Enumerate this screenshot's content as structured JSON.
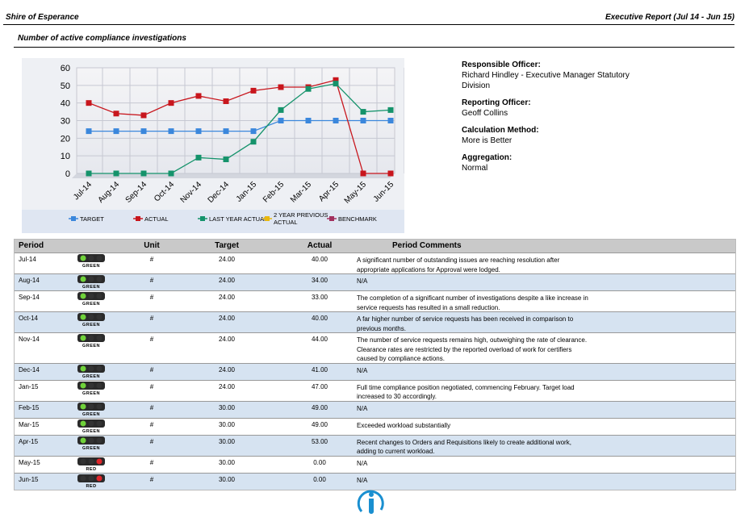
{
  "header": {
    "organisation": "Shire of Esperance",
    "report": "Executive Report (Jul 14 - Jun 15)",
    "subtitle": "Number of active compliance investigations"
  },
  "chart_data": {
    "type": "line",
    "categories": [
      "Jul-14",
      "Aug-14",
      "Sep-14",
      "Oct-14",
      "Nov-14",
      "Dec-14",
      "Jan-15",
      "Feb-15",
      "Mar-15",
      "Apr-15",
      "May-15",
      "Jun-15"
    ],
    "series": [
      {
        "name": "TARGET",
        "color": "#3b87dc",
        "values": [
          24,
          24,
          24,
          24,
          24,
          24,
          24,
          30,
          30,
          30,
          30,
          30
        ]
      },
      {
        "name": "ACTUAL",
        "color": "#c8161d",
        "values": [
          40,
          34,
          33,
          40,
          44,
          41,
          47,
          49,
          49,
          53,
          0,
          0
        ]
      },
      {
        "name": "LAST YEAR ACTUAL",
        "color": "#15936b",
        "values": [
          0,
          0,
          0,
          0,
          9,
          8,
          18,
          36,
          48,
          51,
          35,
          36
        ]
      },
      {
        "name": "2 YEAR PREVIOUS ACTUAL",
        "color": "#e9b80f",
        "values": [
          null,
          null,
          null,
          null,
          null,
          null,
          null,
          null,
          null,
          null,
          null,
          null
        ]
      },
      {
        "name": "BENCHMARK",
        "color": "#a2305e",
        "values": [
          null,
          null,
          null,
          null,
          null,
          null,
          null,
          null,
          null,
          null,
          null,
          null
        ]
      }
    ],
    "ylim": [
      0,
      60
    ],
    "yticks": [
      0,
      10,
      20,
      30,
      40,
      50,
      60
    ],
    "grid": true
  },
  "info": [
    {
      "label": "Responsible Officer:",
      "value": "Richard Hindley - Executive Manager Statutory Division"
    },
    {
      "label": "Reporting Officer:",
      "value": "Geoff Collins"
    },
    {
      "label": "Calculation Method:",
      "value": "More is Better"
    },
    {
      "label": "Aggregation:",
      "value": "Normal"
    }
  ],
  "table": {
    "columns": [
      "Period",
      "Unit",
      "Target",
      "Actual",
      "Period Comments"
    ],
    "rows": [
      {
        "period": "Jul-14",
        "status": {
          "label": "GREEN",
          "lamps": [
            "#6fd23a",
            "#333",
            "#333"
          ]
        },
        "unit": "#",
        "target": "24.00",
        "actual": "40.00",
        "comment": "A significant number of outstanding issues are reaching resolution after appropriate applications for Approval were lodged."
      },
      {
        "period": "Aug-14",
        "status": {
          "label": "GREEN",
          "lamps": [
            "#6fd23a",
            "#333",
            "#333"
          ]
        },
        "unit": "#",
        "target": "24.00",
        "actual": "34.00",
        "comment": "N/A"
      },
      {
        "period": "Sep-14",
        "status": {
          "label": "GREEN",
          "lamps": [
            "#6fd23a",
            "#333",
            "#333"
          ]
        },
        "unit": "#",
        "target": "24.00",
        "actual": "33.00",
        "comment": "The completion of a significant number of investigations despite a like increase in service requests has resulted in a small reduction."
      },
      {
        "period": "Oct-14",
        "status": {
          "label": "GREEN",
          "lamps": [
            "#6fd23a",
            "#333",
            "#333"
          ]
        },
        "unit": "#",
        "target": "24.00",
        "actual": "40.00",
        "comment": "A far higher number of service requests has been received in comparison to previous months."
      },
      {
        "period": "Nov-14",
        "status": {
          "label": "GREEN",
          "lamps": [
            "#6fd23a",
            "#333",
            "#333"
          ]
        },
        "unit": "#",
        "target": "24.00",
        "actual": "44.00",
        "comment": "The number of service requests remains high, outweighing the rate of clearance. Clearance rates are restricted by the reported overload of work for certifiers caused by compliance actions."
      },
      {
        "period": "Dec-14",
        "status": {
          "label": "GREEN",
          "lamps": [
            "#6fd23a",
            "#333",
            "#333"
          ]
        },
        "unit": "#",
        "target": "24.00",
        "actual": "41.00",
        "comment": "N/A"
      },
      {
        "period": "Jan-15",
        "status": {
          "label": "GREEN",
          "lamps": [
            "#6fd23a",
            "#333",
            "#333"
          ]
        },
        "unit": "#",
        "target": "24.00",
        "actual": "47.00",
        "comment": "Full time compliance position negotiated, commencing February. Target load increased to 30 accordingly."
      },
      {
        "period": "Feb-15",
        "status": {
          "label": "GREEN",
          "lamps": [
            "#6fd23a",
            "#333",
            "#333"
          ]
        },
        "unit": "#",
        "target": "30.00",
        "actual": "49.00",
        "comment": "N/A"
      },
      {
        "period": "Mar-15",
        "status": {
          "label": "GREEN",
          "lamps": [
            "#6fd23a",
            "#333",
            "#333"
          ]
        },
        "unit": "#",
        "target": "30.00",
        "actual": "49.00",
        "comment": "Exceeded workload substantially"
      },
      {
        "period": "Apr-15",
        "status": {
          "label": "GREEN",
          "lamps": [
            "#6fd23a",
            "#333",
            "#333"
          ]
        },
        "unit": "#",
        "target": "30.00",
        "actual": "53.00",
        "comment": "Recent changes to Orders and Requisitions likely to create additional work, adding to current workload."
      },
      {
        "period": "May-15",
        "status": {
          "label": "RED",
          "lamps": [
            "#333",
            "#333",
            "#e0262a"
          ]
        },
        "unit": "#",
        "target": "30.00",
        "actual": "0.00",
        "comment": "N/A"
      },
      {
        "period": "Jun-15",
        "status": {
          "label": "RED",
          "lamps": [
            "#333",
            "#333",
            "#e0262a"
          ]
        },
        "unit": "#",
        "target": "30.00",
        "actual": "0.00",
        "comment": "N/A"
      }
    ]
  }
}
